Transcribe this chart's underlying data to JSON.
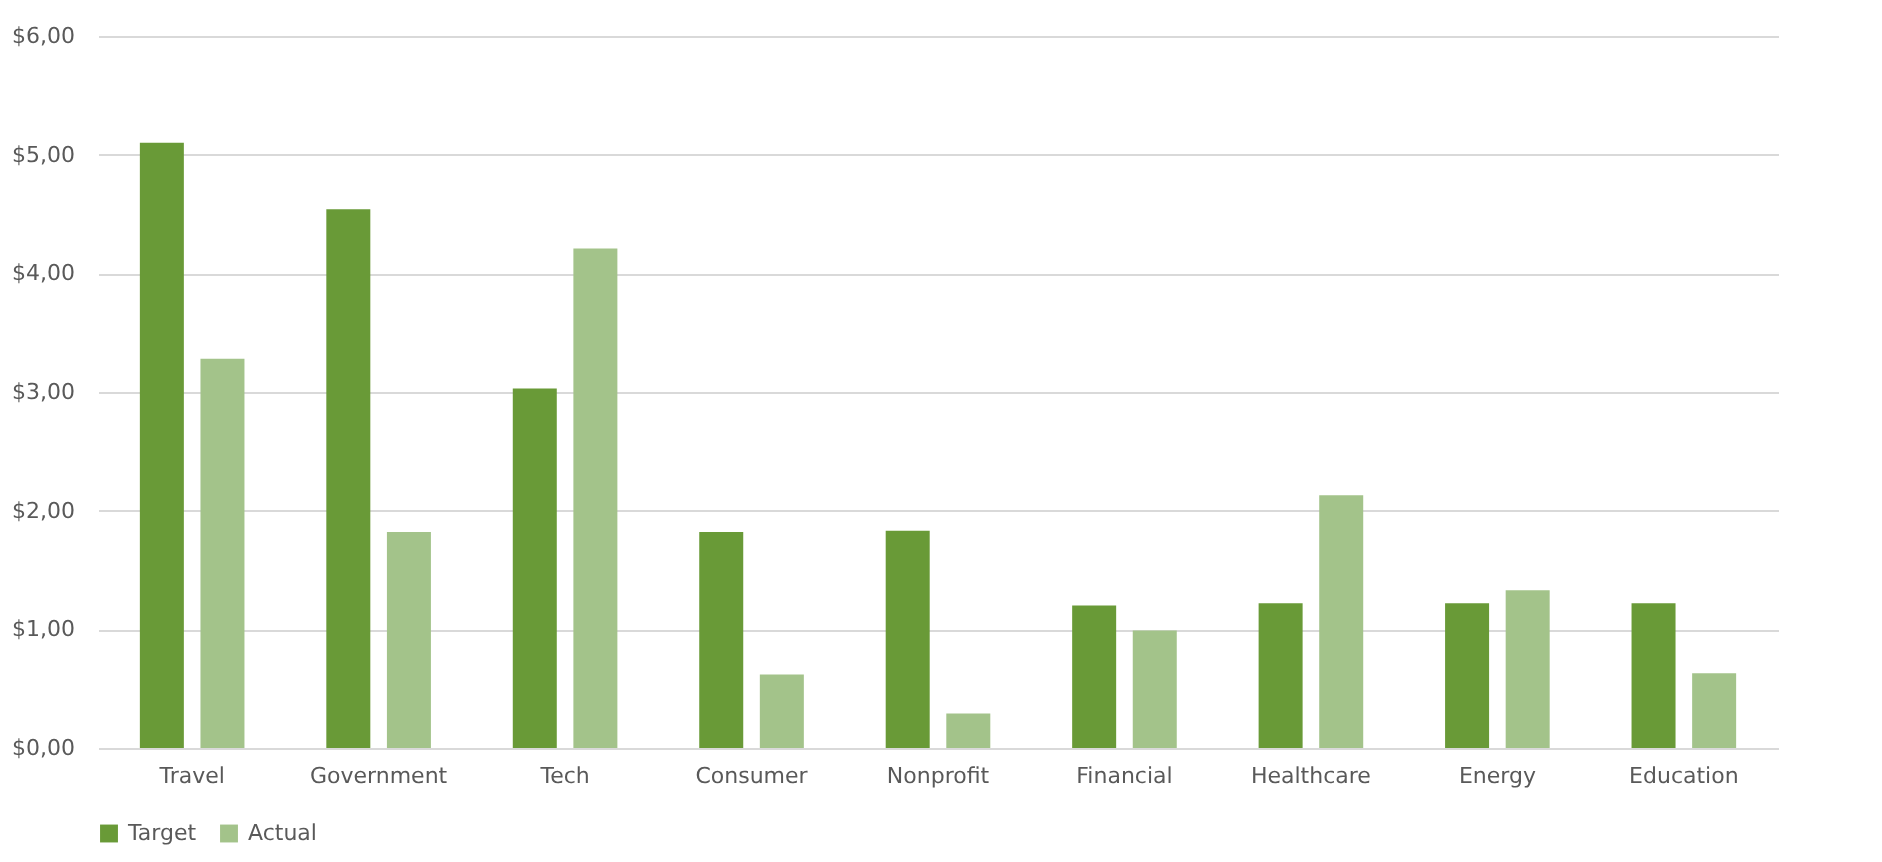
{
  "chart_data": {
    "type": "bar",
    "categories": [
      "Travel",
      "Government",
      "Tech",
      "Consumer",
      "Nonprofit",
      "Financial",
      "Healthcare",
      "Energy",
      "Education"
    ],
    "series": [
      {
        "name": "Target",
        "color": "#699a37",
        "values": [
          5.1,
          4.54,
          3.03,
          1.82,
          1.83,
          1.2,
          1.22,
          1.22,
          1.22
        ]
      },
      {
        "name": "Actual",
        "color": "#a3c38a",
        "values": [
          3.28,
          1.82,
          4.21,
          0.62,
          0.29,
          0.99,
          2.13,
          1.33,
          0.63
        ]
      }
    ],
    "ylim": [
      0,
      6
    ],
    "yticks": [
      {
        "value": 0,
        "label": "$0,00"
      },
      {
        "value": 1,
        "label": "$1,00"
      },
      {
        "value": 2,
        "label": "$2,00"
      },
      {
        "value": 3,
        "label": "$3,00"
      },
      {
        "value": 4,
        "label": "$4,00"
      },
      {
        "value": 5,
        "label": "$5,00"
      },
      {
        "value": 6,
        "label": "$6,00"
      }
    ],
    "grid": "y",
    "legend": "bottom"
  }
}
